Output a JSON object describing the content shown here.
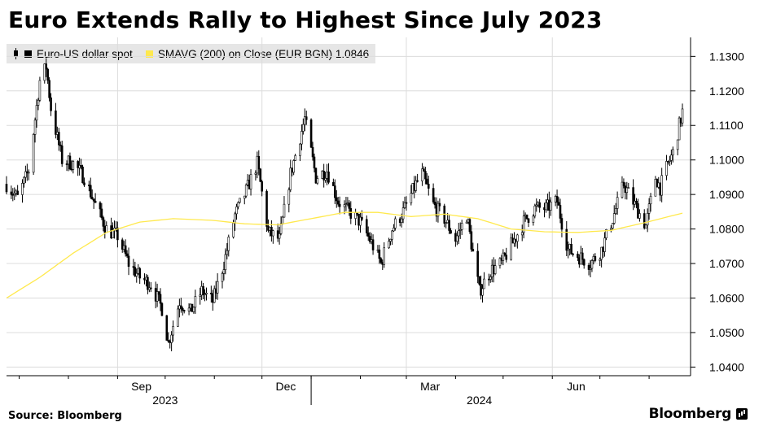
{
  "title": "Euro Extends Rally to Highest Since July 2023",
  "legend": {
    "series1": "Euro-US dollar spot",
    "series2_label": "SMAVG (200)  on Close (EUR BGN) 1.0846"
  },
  "source": "Source: Bloomberg",
  "brand": "Bloomberg",
  "colors": {
    "price": "#000000",
    "sma": "#ffe94d",
    "grid": "#dcdcdc",
    "legend_bg": "#e6e6e6"
  },
  "chart_data": {
    "type": "candlestick-line",
    "yticks": [
      "1.1300",
      "1.1200",
      "1.1100",
      "1.1000",
      "1.0900",
      "1.0800",
      "1.0700",
      "1.0600",
      "1.0500",
      "1.0400"
    ],
    "ylim": [
      1.0375,
      1.1355
    ],
    "ytick_step": 0.01,
    "months": [
      "Sep",
      "Dec",
      "Mar",
      "Jun"
    ],
    "years": [
      "2023",
      "2024"
    ],
    "grid": true,
    "series": [
      {
        "name": "Euro-US dollar spot",
        "kind": "daily OHLC",
        "points": [
          [
            "2023-06-23",
            1.093
          ],
          [
            "2023-06-30",
            1.089
          ],
          [
            "2023-07-07",
            1.097
          ],
          [
            "2023-07-14",
            1.123
          ],
          [
            "2023-07-18",
            1.127
          ],
          [
            "2023-07-21",
            1.115
          ],
          [
            "2023-07-28",
            1.1
          ],
          [
            "2023-08-04",
            1.099
          ],
          [
            "2023-08-11",
            1.095
          ],
          [
            "2023-08-18",
            1.087
          ],
          [
            "2023-08-25",
            1.08
          ],
          [
            "2023-09-01",
            1.078
          ],
          [
            "2023-09-08",
            1.07
          ],
          [
            "2023-09-15",
            1.066
          ],
          [
            "2023-09-22",
            1.064
          ],
          [
            "2023-09-29",
            1.057
          ],
          [
            "2023-10-03",
            1.047
          ],
          [
            "2023-10-10",
            1.059
          ],
          [
            "2023-10-17",
            1.056
          ],
          [
            "2023-10-24",
            1.062
          ],
          [
            "2023-10-31",
            1.059
          ],
          [
            "2023-11-07",
            1.07
          ],
          [
            "2023-11-14",
            1.084
          ],
          [
            "2023-11-21",
            1.091
          ],
          [
            "2023-11-28",
            1.099
          ],
          [
            "2023-12-05",
            1.079
          ],
          [
            "2023-12-12",
            1.077
          ],
          [
            "2023-12-19",
            1.096
          ],
          [
            "2023-12-28",
            1.112
          ],
          [
            "2024-01-04",
            1.095
          ],
          [
            "2024-01-11",
            1.097
          ],
          [
            "2024-01-18",
            1.088
          ],
          [
            "2024-01-25",
            1.085
          ],
          [
            "2024-02-01",
            1.082
          ],
          [
            "2024-02-08",
            1.076
          ],
          [
            "2024-02-14",
            1.07
          ],
          [
            "2024-02-21",
            1.08
          ],
          [
            "2024-02-28",
            1.085
          ],
          [
            "2024-03-07",
            1.093
          ],
          [
            "2024-03-11",
            1.096
          ],
          [
            "2024-03-18",
            1.087
          ],
          [
            "2024-03-25",
            1.083
          ],
          [
            "2024-04-01",
            1.077
          ],
          [
            "2024-04-08",
            1.084
          ],
          [
            "2024-04-16",
            1.062
          ],
          [
            "2024-04-23",
            1.068
          ],
          [
            "2024-04-30",
            1.07
          ],
          [
            "2024-05-07",
            1.076
          ],
          [
            "2024-05-14",
            1.082
          ],
          [
            "2024-05-21",
            1.086
          ],
          [
            "2024-05-28",
            1.086
          ],
          [
            "2024-06-04",
            1.088
          ],
          [
            "2024-06-11",
            1.074
          ],
          [
            "2024-06-18",
            1.072
          ],
          [
            "2024-06-25",
            1.07
          ],
          [
            "2024-07-02",
            1.074
          ],
          [
            "2024-07-09",
            1.083
          ],
          [
            "2024-07-16",
            1.093
          ],
          [
            "2024-07-23",
            1.087
          ],
          [
            "2024-07-30",
            1.081
          ],
          [
            "2024-08-05",
            1.095
          ],
          [
            "2024-08-08",
            1.092
          ],
          [
            "2024-08-13",
            1.099
          ],
          [
            "2024-08-16",
            1.102
          ],
          [
            "2024-08-20",
            1.11
          ],
          [
            "2024-08-22",
            1.114
          ]
        ]
      },
      {
        "name": "SMAVG (200) on Close (EUR BGN)",
        "last_value": 1.0846,
        "points": [
          [
            "2023-06-23",
            1.06
          ],
          [
            "2023-07-14",
            1.066
          ],
          [
            "2023-08-04",
            1.073
          ],
          [
            "2023-08-25",
            1.079
          ],
          [
            "2023-09-15",
            1.082
          ],
          [
            "2023-10-06",
            1.083
          ],
          [
            "2023-10-31",
            1.0825
          ],
          [
            "2023-11-20",
            1.0815
          ],
          [
            "2023-12-11",
            1.0812
          ],
          [
            "2024-01-01",
            1.083
          ],
          [
            "2024-01-22",
            1.0848
          ],
          [
            "2024-02-12",
            1.0848
          ],
          [
            "2024-03-04",
            1.0836
          ],
          [
            "2024-03-25",
            1.0843
          ],
          [
            "2024-04-15",
            1.083
          ],
          [
            "2024-05-06",
            1.08
          ],
          [
            "2024-05-27",
            1.0792
          ],
          [
            "2024-06-17",
            1.079
          ],
          [
            "2024-07-08",
            1.0796
          ],
          [
            "2024-07-29",
            1.0818
          ],
          [
            "2024-08-22",
            1.0846
          ]
        ]
      }
    ]
  }
}
